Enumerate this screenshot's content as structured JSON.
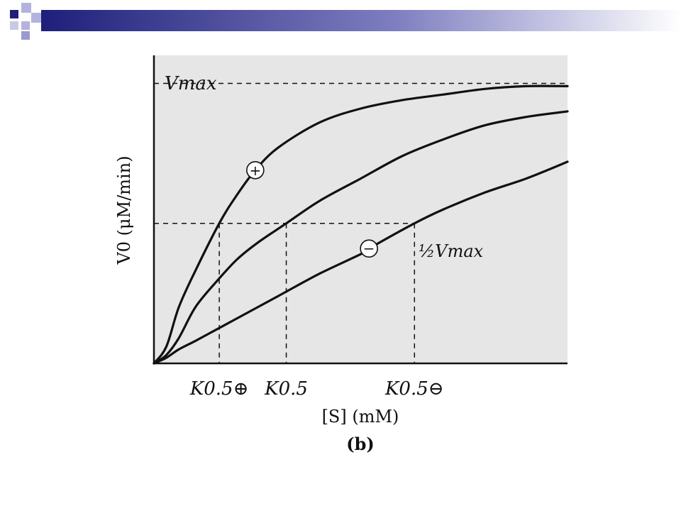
{
  "colors": {
    "header_navy": "#1f1f7a",
    "header_lavender": "#9a9ad0",
    "plot_background": "#e6e6e6",
    "curve": "#111111"
  },
  "chart_data": {
    "type": "line",
    "title": "",
    "panel_label": "(b)",
    "xlabel": "[S] (mM)",
    "ylabel": "V0 (μM/min)",
    "grid": false,
    "legend": "none",
    "xlim": [
      0,
      10
    ],
    "ylim": [
      0,
      1.1
    ],
    "vmax": 1.0,
    "half_vmax": 0.5,
    "vmax_label": "Vmax",
    "half_vmax_label": "½Vmax",
    "x_ticks": [
      {
        "label": "K0.5⊕",
        "x": 1.58
      },
      {
        "label": "K0.5",
        "x": 3.2
      },
      {
        "label": "K0.5⊖",
        "x": 6.3
      }
    ],
    "series": [
      {
        "marker": "+",
        "marker_x": 2.45,
        "x": [
          0,
          0.3,
          0.6,
          1.0,
          1.58,
          2.0,
          2.45,
          3,
          4,
          5,
          6,
          7,
          8,
          9,
          10
        ],
        "values": [
          0,
          0.06,
          0.2,
          0.33,
          0.5,
          0.6,
          0.69,
          0.77,
          0.86,
          0.91,
          0.94,
          0.96,
          0.98,
          0.99,
          0.99
        ]
      },
      {
        "x": [
          0,
          0.3,
          0.6,
          1.0,
          1.5,
          2.0,
          2.5,
          3.2,
          4,
          5,
          6,
          7,
          8,
          9,
          10
        ],
        "values": [
          0,
          0.03,
          0.09,
          0.2,
          0.29,
          0.37,
          0.43,
          0.5,
          0.58,
          0.66,
          0.74,
          0.8,
          0.85,
          0.88,
          0.9
        ]
      },
      {
        "marker": "−",
        "marker_x": 5.2,
        "x": [
          0,
          0.3,
          0.6,
          1.0,
          1.5,
          2.0,
          3,
          4,
          5,
          5.2,
          6.3,
          7,
          8,
          9,
          10
        ],
        "values": [
          0,
          0.02,
          0.05,
          0.08,
          0.12,
          0.16,
          0.24,
          0.32,
          0.39,
          0.41,
          0.5,
          0.55,
          0.61,
          0.66,
          0.72
        ]
      }
    ]
  }
}
